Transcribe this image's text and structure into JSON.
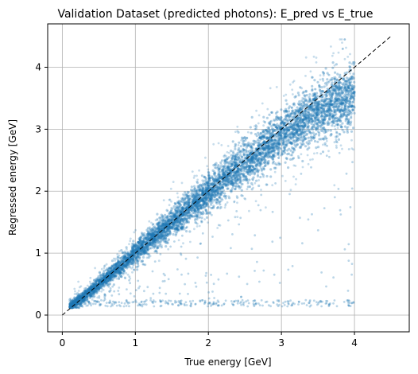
{
  "chart_data": {
    "type": "scatter",
    "title": "Validation Dataset (predicted photons): E_pred vs E_true",
    "xlabel": "True energy [GeV]",
    "ylabel": "Regressed energy [GeV]",
    "xlim": [
      -0.2,
      4.75
    ],
    "ylim": [
      -0.27,
      4.7
    ],
    "xticks": [
      0,
      1,
      2,
      3,
      4
    ],
    "yticks": [
      0,
      1,
      2,
      3,
      4
    ],
    "grid": true,
    "point_color": "#1f77b4",
    "reference_line": {
      "style": "dashed",
      "color": "#000000",
      "x": [
        0,
        4.5
      ],
      "y": [
        0,
        4.5
      ]
    },
    "series": [
      {
        "points_note": "dense band along y=x, x from 0.1 to 4.0; saturated core, scattered outliers",
        "x": [
          0.1,
          0.15,
          0.2,
          0.3,
          0.4,
          0.5,
          0.6,
          0.8,
          1.0,
          1.2,
          1.5,
          1.8,
          2.0,
          2.2,
          2.5,
          2.8,
          3.0,
          3.2,
          3.5,
          3.8,
          4.0
        ],
        "y": [
          0.15,
          0.18,
          0.22,
          0.3,
          0.4,
          0.5,
          0.6,
          0.8,
          1.0,
          1.2,
          1.48,
          1.78,
          1.98,
          2.18,
          2.45,
          2.72,
          2.9,
          3.05,
          3.3,
          3.45,
          3.55
        ]
      }
    ]
  }
}
